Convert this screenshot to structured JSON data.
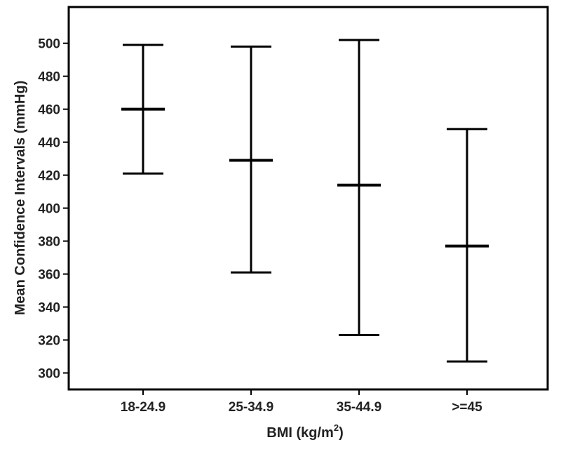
{
  "chart_data": {
    "type": "errorbar",
    "xlabel_prefix": "BMI (kg/m",
    "xlabel_superscript": "2",
    "xlabel_suffix": ")",
    "ylabel": "Mean Confidence Intervals (mmHg)",
    "categories": [
      "18-24.9",
      "25-34.9",
      "35-44.9",
      ">=45"
    ],
    "series": [
      {
        "mean": [
          460,
          429,
          414,
          377
        ],
        "lower": [
          421,
          361,
          323,
          307
        ],
        "upper": [
          499,
          498,
          502,
          448
        ]
      }
    ],
    "ylim": [
      290,
      522
    ],
    "yticks": [
      300,
      320,
      340,
      360,
      380,
      400,
      420,
      440,
      460,
      480,
      500
    ],
    "grid": false,
    "legend": "none",
    "colors": {
      "marks": "#000000",
      "text": "#222222"
    }
  }
}
